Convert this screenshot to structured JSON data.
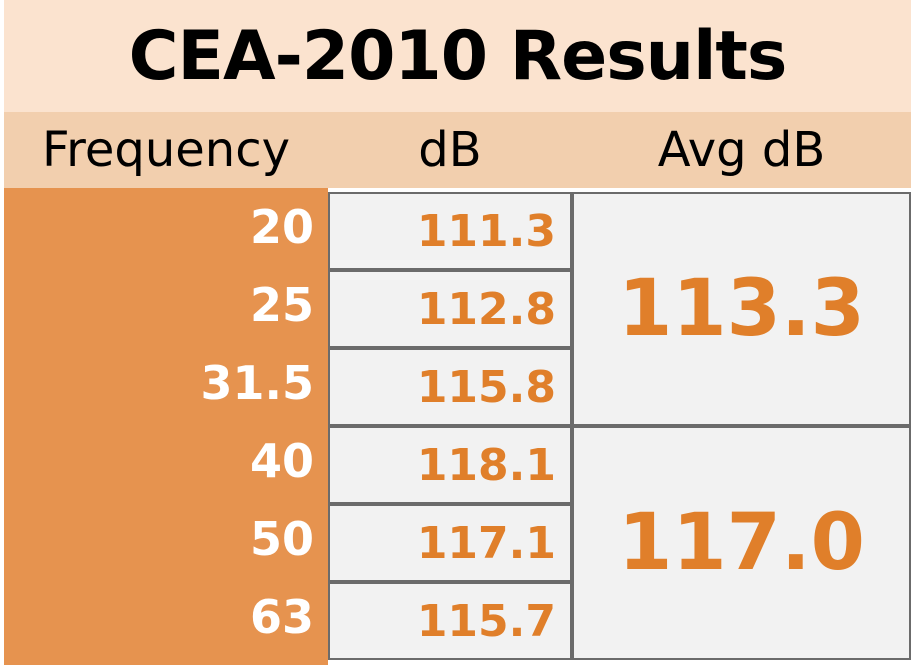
{
  "chart_data": {
    "type": "table",
    "title": "CEA-2010 Results",
    "columns": [
      "Frequency",
      "dB",
      "Avg dB"
    ],
    "rows": [
      {
        "frequency": "20",
        "db": "111.3"
      },
      {
        "frequency": "25",
        "db": "112.8"
      },
      {
        "frequency": "31.5",
        "db": "115.8"
      },
      {
        "frequency": "40",
        "db": "118.1"
      },
      {
        "frequency": "50",
        "db": "117.1"
      },
      {
        "frequency": "63",
        "db": "115.7"
      }
    ],
    "averages": [
      {
        "value": "113.3",
        "rows": [
          0,
          1,
          2
        ]
      },
      {
        "value": "117.0",
        "rows": [
          3,
          4,
          5
        ]
      }
    ],
    "colors": {
      "title_background": "#fbe3cf",
      "header_background": "#f2cfae",
      "frequency_background": "#e6934f",
      "value_color": "#e07f2a",
      "cell_background": "#f2f2f2",
      "border": "#6b6b6b"
    }
  }
}
